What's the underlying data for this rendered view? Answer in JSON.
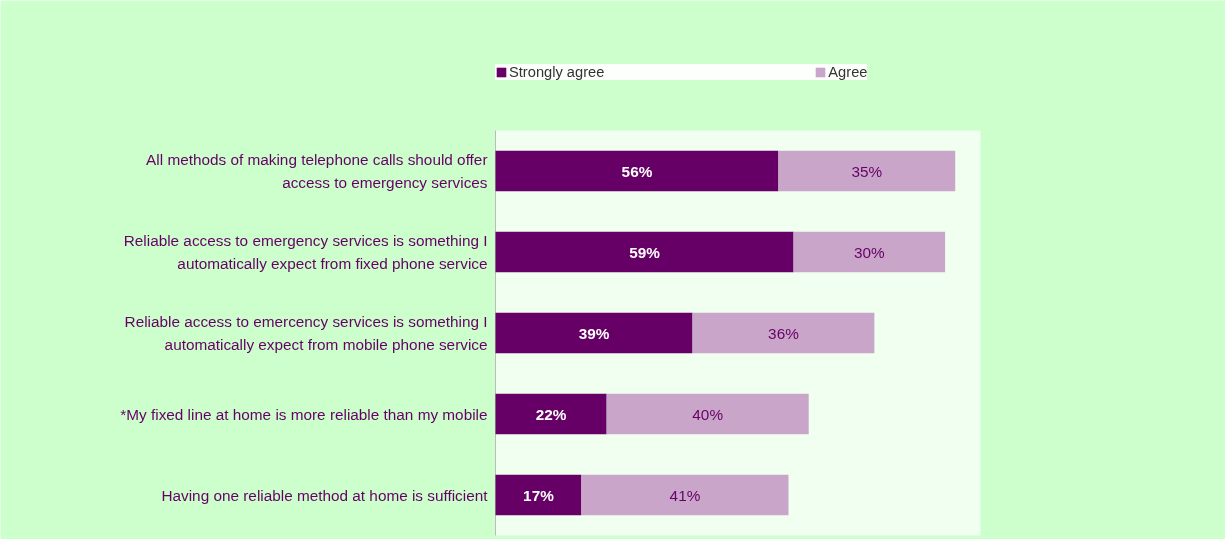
{
  "chart_data": {
    "type": "bar",
    "orientation": "horizontal",
    "stacked": true,
    "legend": "top",
    "categories": [
      "All methods of making telephone calls should offer access to emergency services",
      "Reliable access to emergency services is something I automatically expect from fixed phone service",
      "Reliable access to emercency services is something I automatically expect from mobile phone service",
      "*My fixed line at home is more reliable than my mobile",
      "Having one reliable method at home is sufficient"
    ],
    "series": [
      {
        "name": "Strongly agree",
        "color": "#660066",
        "values": [
          56,
          59,
          39,
          22,
          17
        ],
        "value_labels": [
          "56%",
          "59%",
          "39%",
          "22%",
          "17%"
        ]
      },
      {
        "name": "Agree",
        "color": "#c9a6c9",
        "values": [
          35,
          30,
          36,
          40,
          41
        ],
        "value_labels": [
          "35%",
          "30%",
          "36%",
          "40%",
          "41%"
        ]
      }
    ]
  }
}
